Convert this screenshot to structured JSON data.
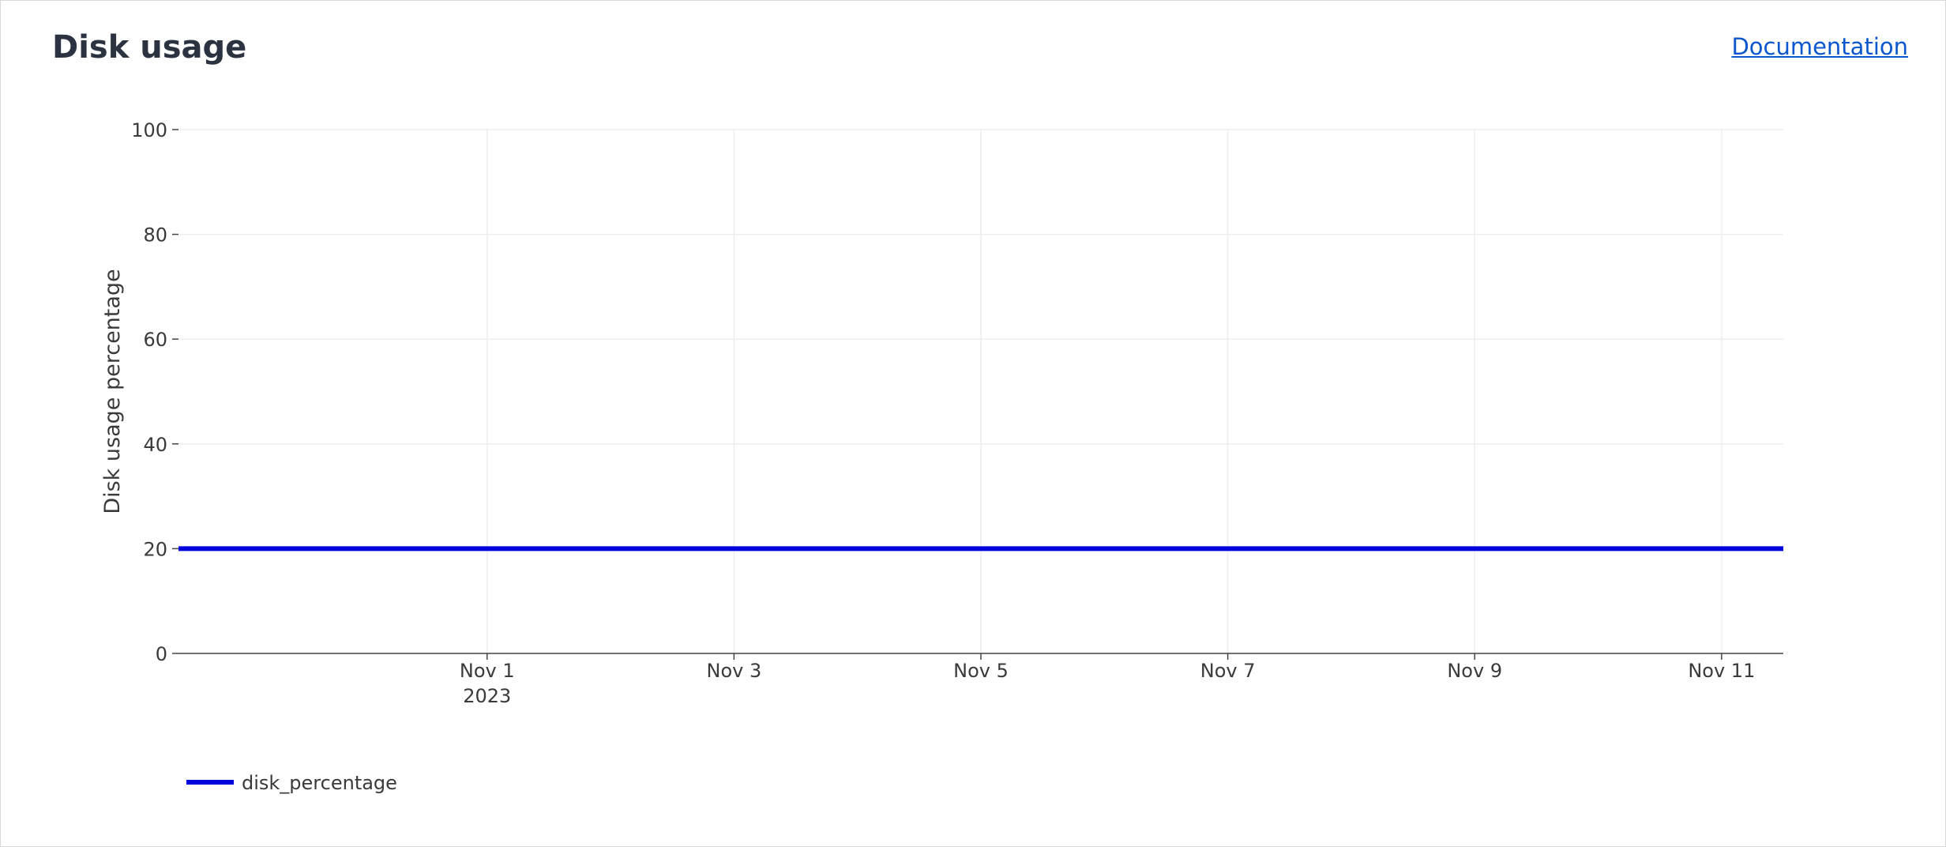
{
  "header": {
    "title": "Disk usage",
    "documentation_link": "Documentation"
  },
  "colors": {
    "series": "#0000dd",
    "grid": "#eeeeee",
    "axis": "#444444",
    "text": "#3a3a3a"
  },
  "chart_data": {
    "type": "line",
    "title": "",
    "xlabel": "",
    "ylabel": "Disk usage percentage",
    "x_axis_type": "date",
    "xlim": [
      "2023-10-29T12:00",
      "2023-11-11T12:00"
    ],
    "ylim": [
      0,
      100
    ],
    "x_ticks": [
      {
        "value": "2023-11-01",
        "label": "Nov 1",
        "sublabel": "2023"
      },
      {
        "value": "2023-11-03",
        "label": "Nov 3",
        "sublabel": ""
      },
      {
        "value": "2023-11-05",
        "label": "Nov 5",
        "sublabel": ""
      },
      {
        "value": "2023-11-07",
        "label": "Nov 7",
        "sublabel": ""
      },
      {
        "value": "2023-11-09",
        "label": "Nov 9",
        "sublabel": ""
      },
      {
        "value": "2023-11-11",
        "label": "Nov 11",
        "sublabel": ""
      }
    ],
    "y_ticks": [
      0,
      20,
      40,
      60,
      80,
      100
    ],
    "grid": true,
    "legend_position": "bottom-left",
    "series": [
      {
        "name": "disk_percentage",
        "color": "#0000dd",
        "x": [
          "2023-10-29T12:00",
          "2023-11-11T12:00"
        ],
        "y": [
          20,
          20
        ]
      }
    ]
  }
}
